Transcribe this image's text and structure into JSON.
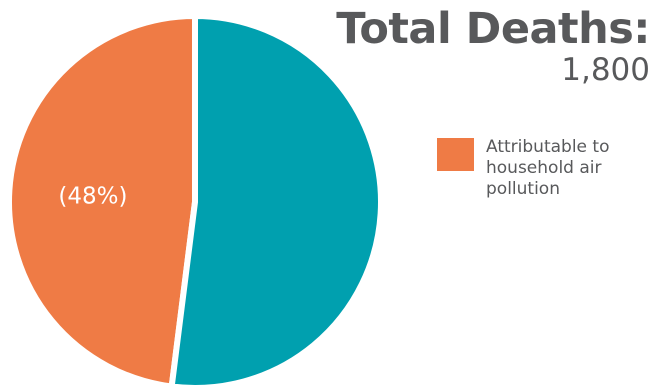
{
  "title": "Total Deaths:",
  "total_value": "1,800",
  "chart_data": {
    "type": "pie",
    "title": "Total Deaths:",
    "subtitle": "1,800",
    "slices": [
      {
        "label": "Attributable to household air pollution",
        "value": 48,
        "data_label": "(48%)",
        "color": "#ef7b45"
      },
      {
        "label": "",
        "value": 52,
        "data_label": "",
        "color": "#00a0af"
      }
    ],
    "legend": {
      "placement": "right",
      "entries": [
        "Attributable to household air pollution"
      ]
    }
  }
}
